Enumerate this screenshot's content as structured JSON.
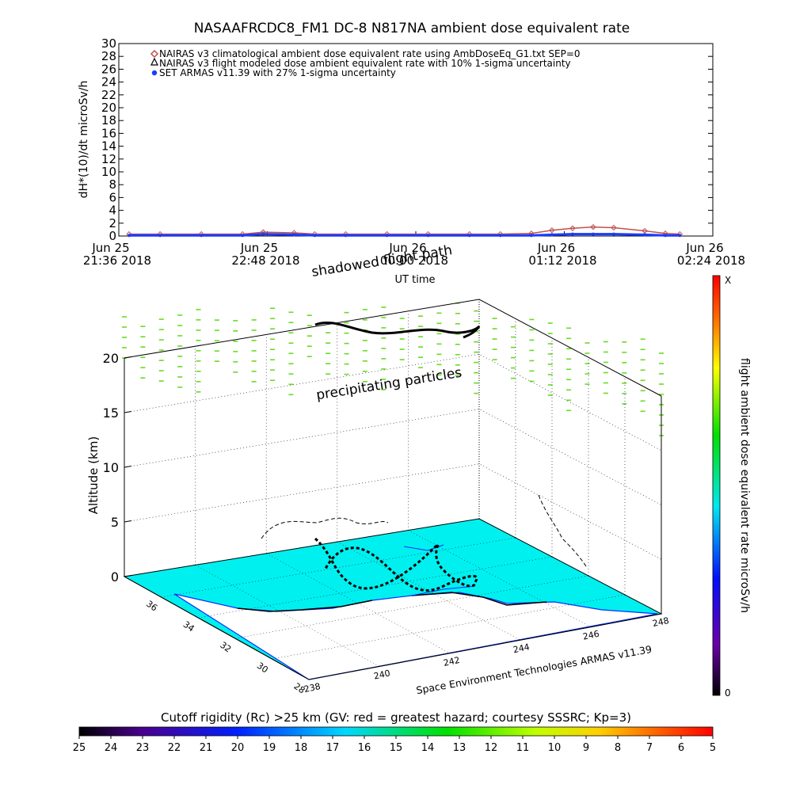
{
  "chart_data": [
    {
      "type": "line",
      "title": "NASAAFRCDC8_FM1 DC-8   N817NA ambient dose equivalent rate",
      "ylabel": "dH*(10)/dt microSv/h",
      "xlabel": "UT time",
      "ylim": [
        0,
        30
      ],
      "yticks": [
        "0",
        "2",
        "4",
        "6",
        "8",
        "10",
        "12",
        "14",
        "16",
        "18",
        "20",
        "22",
        "24",
        "26",
        "28",
        "30"
      ],
      "xticks": [
        {
          "t": 0,
          "line1": "Jun 25",
          "line2": "21:36 2018"
        },
        {
          "t": 72,
          "line1": "Jun 25",
          "line2": "22:48 2018"
        },
        {
          "t": 144,
          "line1": "Jun 26",
          "line2": "00:00 2018"
        },
        {
          "t": 216,
          "line1": "Jun 26",
          "line2": "01:12 2018"
        },
        {
          "t": 288,
          "line1": "Jun 26",
          "line2": "02:24 2018"
        }
      ],
      "legend": [
        {
          "name": "NAIRAS v3 climatological ambient dose equivalent rate using AmbDoseEq_G1.txt SEP=0",
          "color": "#c0504d",
          "marker": "diamond"
        },
        {
          "name": "NAIRAS v3 flight modeled dose ambient equivalent rate with 10% 1-sigma uncertainty",
          "color": "#000000",
          "marker": "triangle"
        },
        {
          "name": "SET ARMAS v11.39 with 27% 1-sigma uncertainty",
          "color": "#1a3cff",
          "marker": "dot"
        }
      ],
      "series": [
        {
          "name": "NAIRAS v3 climatological ambient dose equivalent rate using AmbDoseEq_G1.txt SEP=0",
          "color": "#c0504d",
          "x": [
            5,
            20,
            40,
            60,
            70,
            85,
            95,
            110,
            130,
            150,
            170,
            185,
            200,
            210,
            220,
            230,
            240,
            255,
            265,
            272
          ],
          "y": [
            0.3,
            0.3,
            0.3,
            0.3,
            0.6,
            0.5,
            0.3,
            0.3,
            0.3,
            0.3,
            0.3,
            0.3,
            0.4,
            0.9,
            1.2,
            1.4,
            1.3,
            0.8,
            0.4,
            0.3
          ]
        },
        {
          "name": "SET ARMAS v11.39 with 27% 1-sigma uncertainty",
          "color": "#1a3cff",
          "x": [
            5,
            20,
            40,
            60,
            70,
            85,
            95,
            110,
            130,
            150,
            170,
            185,
            200,
            210,
            220,
            230,
            240,
            255,
            265,
            272
          ],
          "y": [
            0.1,
            0.1,
            0.1,
            0.1,
            0.3,
            0.2,
            0.1,
            0.1,
            0.1,
            0.1,
            0.1,
            0.1,
            0.1,
            0.2,
            0.3,
            0.3,
            0.3,
            0.2,
            0.1,
            0.1
          ]
        }
      ]
    },
    {
      "type": "scatter",
      "title": "",
      "ylabel": "Altitude (km)",
      "zticks": [
        "0",
        "5",
        "10",
        "15",
        "20"
      ],
      "lat_ticks": [
        "36",
        "34",
        "32",
        "30",
        "28"
      ],
      "lon_ticks": [
        "238",
        "240",
        "242",
        "244",
        "246",
        "248"
      ],
      "annotations": [
        "shadowed flight path",
        "precipitating particles"
      ],
      "credit": "Space Environment Technologies ARMAS v11.39",
      "colorbar": {
        "label": "flight ambient dose equivalent rate microSv/h",
        "min_label": "0",
        "max_label": "X"
      },
      "surface_color": "#00f0f0",
      "particle_color": "#66dd22"
    }
  ],
  "cutoff_bar": {
    "label": "Cutoff rigidity (Rc) >25 km (GV: red = greatest hazard; courtesy SSSRC; Kp=3)",
    "ticks": [
      "25",
      "24",
      "23",
      "22",
      "21",
      "20",
      "19",
      "18",
      "17",
      "16",
      "15",
      "14",
      "13",
      "12",
      "11",
      "10",
      "9",
      "8",
      "7",
      "6",
      "5"
    ]
  }
}
